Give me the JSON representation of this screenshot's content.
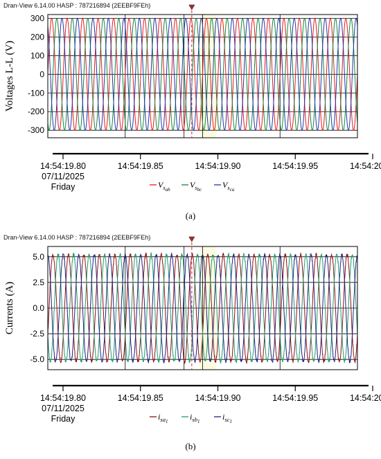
{
  "figures": [
    {
      "caption": "(a)",
      "window_title": "Dran-View 6.14.00 HASP : 787216894 (2EEBF9FEh)",
      "date": "07/11/2025",
      "day": "Friday"
    },
    {
      "caption": "(b)",
      "window_title": "Dran-View 6.14.00 HASP : 787216894 (2EEBF9FEh)",
      "date": "07/11/2025",
      "day": "Friday"
    }
  ],
  "colors": {
    "red": "#e8191c",
    "green": "#13843e",
    "blue": "#2333a8",
    "dark_red": "#8b0f0f",
    "teal_green": "#1f9a6c",
    "navy": "#1d1f80",
    "highlight": "#fbfbe3",
    "cursor": "#e0232a",
    "marker": "#9e2f32"
  },
  "chart_data": [
    {
      "type": "line",
      "ylabel": "Voltages L-L (V)",
      "xlabel": "",
      "x_range": [
        "14:54:19.80",
        "14:54:20.00"
      ],
      "ylim": [
        -340,
        320
      ],
      "yticks": [
        300,
        200,
        100,
        0,
        -100,
        -200,
        -300
      ],
      "ytick_labels": [
        "300",
        "200",
        "100",
        "0",
        "-100",
        "-200",
        "-300"
      ],
      "xtick_labels": [
        "14:54:19.80",
        "14:54:19.85",
        "14:54:19.90",
        "14:54:19.95",
        "14:54:20.00"
      ],
      "xticks_s": [
        0.0,
        0.05,
        0.1,
        0.15,
        0.2
      ],
      "frequency_hz": 100,
      "amplitude": 300,
      "grid": true,
      "legend_position": "bottom-center",
      "cursor_s": 0.093,
      "highlight_s": [
        0.098,
        0.109
      ],
      "series": [
        {
          "name": "V_{s_{ab}}",
          "color": "#e8191c",
          "amplitude": 300,
          "phase_deg": 0
        },
        {
          "name": "V_{s_{bc}}",
          "color": "#13843e",
          "amplitude": 300,
          "phase_deg": -120
        },
        {
          "name": "V_{s_{ca}}",
          "color": "#2333a8",
          "amplitude": 300,
          "phase_deg": 120
        }
      ]
    },
    {
      "type": "line",
      "ylabel": "Currents (A)",
      "xlabel": "",
      "x_range": [
        "14:54:19.80",
        "14:54:20.00"
      ],
      "ylim": [
        -6.0,
        6.0
      ],
      "yticks": [
        5.0,
        2.5,
        0.0,
        -2.5,
        -5.0
      ],
      "ytick_labels": [
        "5.0",
        "2.5",
        "0.0",
        "-2.5",
        "-5.0"
      ],
      "xtick_labels": [
        "14:54:19.80",
        "14:54:19.85",
        "14:54:19.90",
        "14:54:19.95",
        "14:54:20.00"
      ],
      "xticks_s": [
        0.0,
        0.05,
        0.1,
        0.15,
        0.2
      ],
      "frequency_hz": 100,
      "amplitude": 5.2,
      "grid": true,
      "legend_position": "bottom-center",
      "cursor_s": 0.093,
      "highlight_s": [
        0.098,
        0.109
      ],
      "series": [
        {
          "name": "i_{sa_1}",
          "color": "#8b0f0f",
          "amplitude": 5.2,
          "phase_deg": -30
        },
        {
          "name": "i_{sb_1}",
          "color": "#1f9a6c",
          "amplitude": 5.2,
          "phase_deg": -150
        },
        {
          "name": "i_{sc_1}",
          "color": "#1d1f80",
          "amplitude": 5.2,
          "phase_deg": 90
        }
      ]
    }
  ]
}
